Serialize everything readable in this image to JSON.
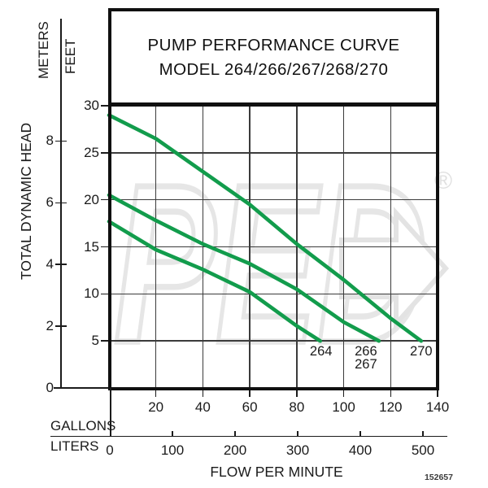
{
  "part_number": "152657",
  "watermark": {
    "text": "PED",
    "registered_mark": "®"
  },
  "colors": {
    "curve_green": "#129C4C",
    "grid_line": "#3B3B3B",
    "frame": "#101010",
    "text": "#1B1B1B",
    "watermark": "#E6E6E6"
  },
  "chart_data": {
    "type": "line",
    "title_line1": "PUMP PERFORMANCE CURVE",
    "title_line2": "MODEL 264/266/267/268/270",
    "grid": true,
    "legend_position": "curve-end-labels-inside-plot",
    "x_axis": {
      "label": "FLOW PER MINUTE",
      "primary_unit": "GALLONS",
      "primary_ticks": [
        20,
        40,
        60,
        80,
        100,
        120,
        140
      ],
      "primary_range": [
        0,
        140
      ],
      "secondary_unit": "LITERS",
      "secondary_ticks": [
        0,
        100,
        200,
        300,
        400,
        500
      ]
    },
    "y_axis": {
      "label": "TOTAL DYNAMIC HEAD",
      "primary_unit": "FEET",
      "primary_ticks": [
        30,
        25,
        20,
        15,
        10,
        5
      ],
      "primary_range": [
        0,
        30
      ],
      "secondary_unit": "METERS",
      "secondary_ticks": [
        8,
        6,
        4,
        2,
        0
      ]
    },
    "series": [
      {
        "name": "264",
        "label_lines": [
          "264"
        ],
        "points_gpm_ft": [
          [
            0,
            17.7
          ],
          [
            20,
            14.7
          ],
          [
            40,
            12.6
          ],
          [
            60,
            10.2
          ],
          [
            80,
            6.6
          ],
          [
            90,
            5
          ]
        ]
      },
      {
        "name": "266/267",
        "label_lines": [
          "266",
          "267"
        ],
        "points_gpm_ft": [
          [
            0,
            20.5
          ],
          [
            20,
            17.8
          ],
          [
            40,
            15.3
          ],
          [
            60,
            13.2
          ],
          [
            80,
            10.5
          ],
          [
            100,
            7
          ],
          [
            115,
            5
          ]
        ]
      },
      {
        "name": "270",
        "label_lines": [
          "270"
        ],
        "points_gpm_ft": [
          [
            0,
            29
          ],
          [
            20,
            26.5
          ],
          [
            40,
            23
          ],
          [
            60,
            19.5
          ],
          [
            80,
            15.3
          ],
          [
            100,
            11.5
          ],
          [
            120,
            7.4
          ],
          [
            133,
            5
          ]
        ]
      }
    ]
  }
}
